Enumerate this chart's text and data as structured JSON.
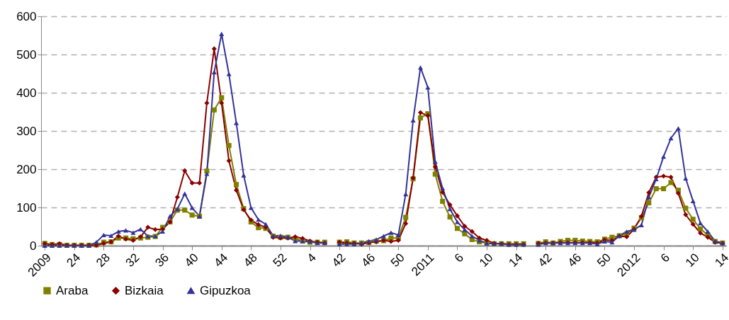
{
  "chart_data": {
    "type": "line",
    "categories": [
      "2009",
      null,
      null,
      null,
      "24",
      null,
      null,
      null,
      "28",
      null,
      null,
      null,
      "32",
      null,
      null,
      null,
      "36",
      null,
      null,
      null,
      "40",
      null,
      null,
      null,
      "44",
      null,
      null,
      null,
      "48",
      null,
      null,
      null,
      "52",
      null,
      null,
      null,
      "4",
      null,
      null,
      null,
      "42",
      null,
      null,
      null,
      "46",
      null,
      null,
      null,
      "50",
      null,
      null,
      null,
      "2011",
      null,
      null,
      null,
      "6",
      null,
      null,
      null,
      "10",
      null,
      null,
      null,
      "14",
      null,
      null,
      null,
      "42",
      null,
      null,
      null,
      "46",
      null,
      null,
      null,
      "50",
      null,
      null,
      null,
      "2012",
      null,
      null,
      null,
      "6",
      null,
      null,
      null,
      "10",
      null,
      null,
      null,
      "14"
    ],
    "series": [
      {
        "name": "Araba",
        "color": "#808000",
        "marker": "square",
        "values": [
          6,
          3,
          3,
          1,
          1,
          1,
          1,
          2,
          9,
          10,
          20,
          20,
          18,
          20,
          22,
          24,
          48,
          62,
          93,
          93,
          80,
          77,
          195,
          355,
          387,
          262,
          160,
          97,
          62,
          47,
          45,
          25,
          22,
          22,
          19,
          12,
          9,
          9,
          9,
          null,
          9,
          10,
          7,
          7,
          8,
          12,
          13,
          20,
          20,
          74,
          175,
          334,
          345,
          187,
          116,
          75,
          45,
          31,
          16,
          10,
          7,
          5,
          5,
          5,
          5,
          5,
          null,
          6,
          10,
          7,
          11,
          14,
          14,
          12,
          11,
          10,
          17,
          22,
          26,
          31,
          46,
          73,
          112,
          149,
          149,
          165,
          145,
          98,
          69,
          44,
          28,
          11,
          7
        ]
      },
      {
        "name": "Bizkaia",
        "color": "#8b0000",
        "marker": "diamond",
        "values": [
          5,
          3,
          5,
          1,
          1,
          1,
          1,
          1,
          6,
          10,
          25,
          17,
          14,
          23,
          48,
          42,
          43,
          62,
          127,
          196,
          164,
          164,
          373,
          515,
          373,
          222,
          145,
          94,
          67,
          55,
          48,
          22,
          20,
          20,
          23,
          19,
          12,
          9,
          7,
          null,
          9,
          7,
          6,
          4,
          8,
          10,
          14,
          11,
          14,
          58,
          177,
          348,
          340,
          206,
          140,
          107,
          78,
          51,
          37,
          20,
          14,
          6,
          5,
          3,
          3,
          3,
          null,
          6,
          7,
          7,
          8,
          8,
          8,
          8,
          8,
          7,
          15,
          14,
          25,
          23,
          43,
          77,
          139,
          179,
          182,
          179,
          137,
          81,
          56,
          33,
          22,
          9,
          6
        ]
      },
      {
        "name": "Gipuzkoa",
        "color": "#333399",
        "marker": "triangle",
        "values": [
          0,
          0,
          0,
          0,
          0,
          0,
          0,
          9,
          28,
          26,
          37,
          40,
          34,
          43,
          25,
          25,
          37,
          77,
          96,
          136,
          99,
          77,
          188,
          454,
          554,
          449,
          321,
          184,
          99,
          68,
          56,
          26,
          26,
          23,
          12,
          12,
          11,
          7,
          7,
          null,
          4,
          4,
          4,
          7,
          12,
          16,
          25,
          34,
          28,
          135,
          328,
          466,
          414,
          220,
          150,
          96,
          62,
          42,
          25,
          14,
          6,
          5,
          5,
          3,
          3,
          3,
          null,
          3,
          7,
          7,
          7,
          7,
          7,
          7,
          7,
          4,
          11,
          9,
          26,
          37,
          42,
          54,
          127,
          174,
          233,
          281,
          307,
          176,
          117,
          59,
          37,
          12,
          7
        ]
      }
    ],
    "ylim": [
      0,
      600
    ],
    "yticks": [
      0,
      100,
      200,
      300,
      400,
      500,
      600
    ],
    "grid": "y",
    "legend": "bottom"
  }
}
